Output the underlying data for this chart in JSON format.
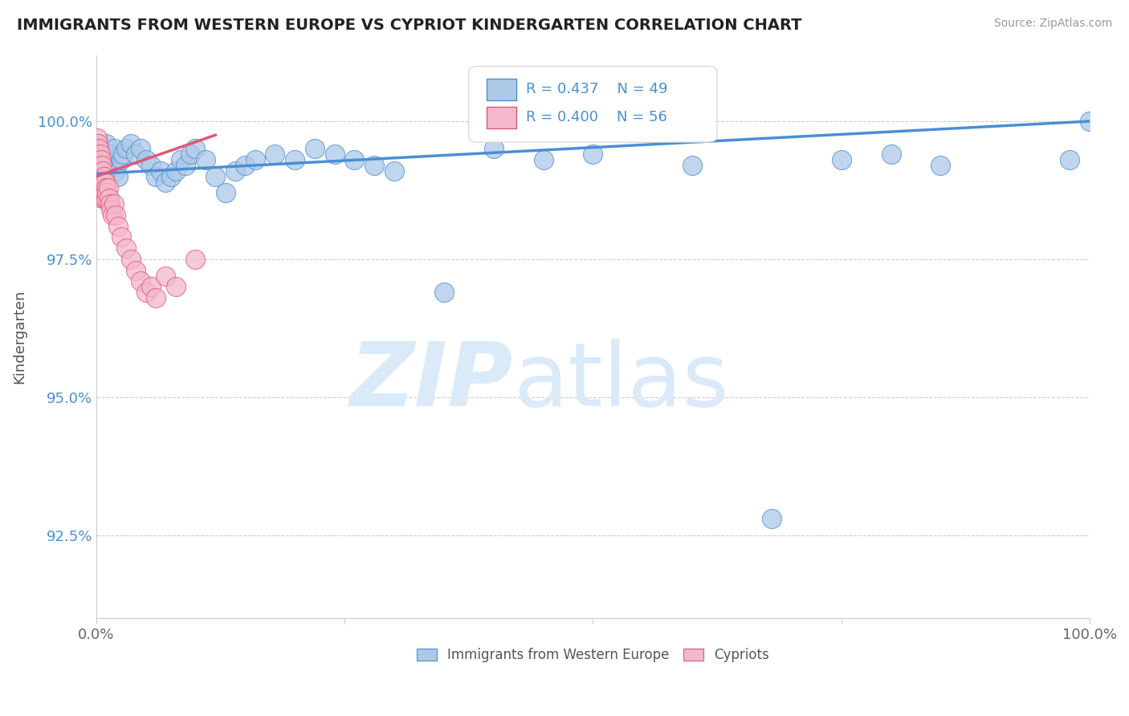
{
  "title": "IMMIGRANTS FROM WESTERN EUROPE VS CYPRIOT KINDERGARTEN CORRELATION CHART",
  "source": "Source: ZipAtlas.com",
  "ylabel": "Kindergarten",
  "blue_R": 0.437,
  "blue_N": 49,
  "pink_R": 0.4,
  "pink_N": 56,
  "blue_color": "#adc9e8",
  "pink_color": "#f4b8cc",
  "blue_line_color": "#4a8fd4",
  "pink_line_color": "#e05878",
  "watermark_zip": "ZIP",
  "watermark_atlas": "atlas",
  "watermark_color": "#daeaf8",
  "legend_label_blue": "Immigrants from Western Europe",
  "legend_label_pink": "Cypriots",
  "blue_scatter_x": [
    0.003,
    0.008,
    0.01,
    0.012,
    0.015,
    0.018,
    0.02,
    0.022,
    0.025,
    0.027,
    0.03,
    0.035,
    0.04,
    0.045,
    0.05,
    0.055,
    0.06,
    0.065,
    0.07,
    0.075,
    0.08,
    0.085,
    0.09,
    0.095,
    0.1,
    0.11,
    0.12,
    0.13,
    0.14,
    0.15,
    0.16,
    0.18,
    0.2,
    0.22,
    0.24,
    0.26,
    0.28,
    0.3,
    0.35,
    0.4,
    0.45,
    0.5,
    0.6,
    0.68,
    0.75,
    0.8,
    0.85,
    0.98,
    1.0
  ],
  "blue_scatter_y": [
    99.5,
    99.3,
    99.6,
    99.2,
    99.4,
    99.5,
    99.1,
    99.0,
    99.3,
    99.4,
    99.5,
    99.6,
    99.4,
    99.5,
    99.3,
    99.2,
    99.0,
    99.1,
    98.9,
    99.0,
    99.1,
    99.3,
    99.2,
    99.4,
    99.5,
    99.3,
    99.0,
    98.7,
    99.1,
    99.2,
    99.3,
    99.4,
    99.3,
    99.5,
    99.4,
    99.3,
    99.2,
    99.1,
    96.9,
    99.5,
    99.3,
    99.4,
    99.2,
    92.8,
    99.3,
    99.4,
    99.2,
    99.3,
    100.0
  ],
  "pink_scatter_x": [
    0.001,
    0.001,
    0.001,
    0.001,
    0.002,
    0.002,
    0.002,
    0.002,
    0.002,
    0.003,
    0.003,
    0.003,
    0.003,
    0.003,
    0.004,
    0.004,
    0.004,
    0.004,
    0.005,
    0.005,
    0.005,
    0.005,
    0.006,
    0.006,
    0.006,
    0.006,
    0.007,
    0.007,
    0.007,
    0.008,
    0.008,
    0.008,
    0.009,
    0.009,
    0.01,
    0.01,
    0.011,
    0.012,
    0.013,
    0.014,
    0.015,
    0.016,
    0.018,
    0.02,
    0.022,
    0.025,
    0.03,
    0.035,
    0.04,
    0.045,
    0.05,
    0.055,
    0.06,
    0.07,
    0.08,
    0.1
  ],
  "pink_scatter_y": [
    99.7,
    99.5,
    99.3,
    99.1,
    99.6,
    99.4,
    99.2,
    99.0,
    98.8,
    99.5,
    99.3,
    99.1,
    98.9,
    98.7,
    99.4,
    99.2,
    99.0,
    98.8,
    99.3,
    99.1,
    98.9,
    98.7,
    99.2,
    99.0,
    98.8,
    98.6,
    99.1,
    98.9,
    98.7,
    99.0,
    98.8,
    98.6,
    98.9,
    98.7,
    98.8,
    98.6,
    98.7,
    98.8,
    98.6,
    98.5,
    98.4,
    98.3,
    98.5,
    98.3,
    98.1,
    97.9,
    97.7,
    97.5,
    97.3,
    97.1,
    96.9,
    97.0,
    96.8,
    97.2,
    97.0,
    97.5
  ],
  "xlim": [
    0.0,
    1.0
  ],
  "ylim": [
    91.0,
    101.2
  ],
  "y_ticks": [
    92.5,
    95.0,
    97.5,
    100.0
  ],
  "y_tick_labels": [
    "92.5%",
    "95.0%",
    "97.5%",
    "100.0%"
  ],
  "x_ticks": [
    0.0,
    0.25,
    0.5,
    0.75,
    1.0
  ],
  "x_tick_labels": [
    "0.0%",
    "",
    "",
    "",
    "100.0%"
  ]
}
